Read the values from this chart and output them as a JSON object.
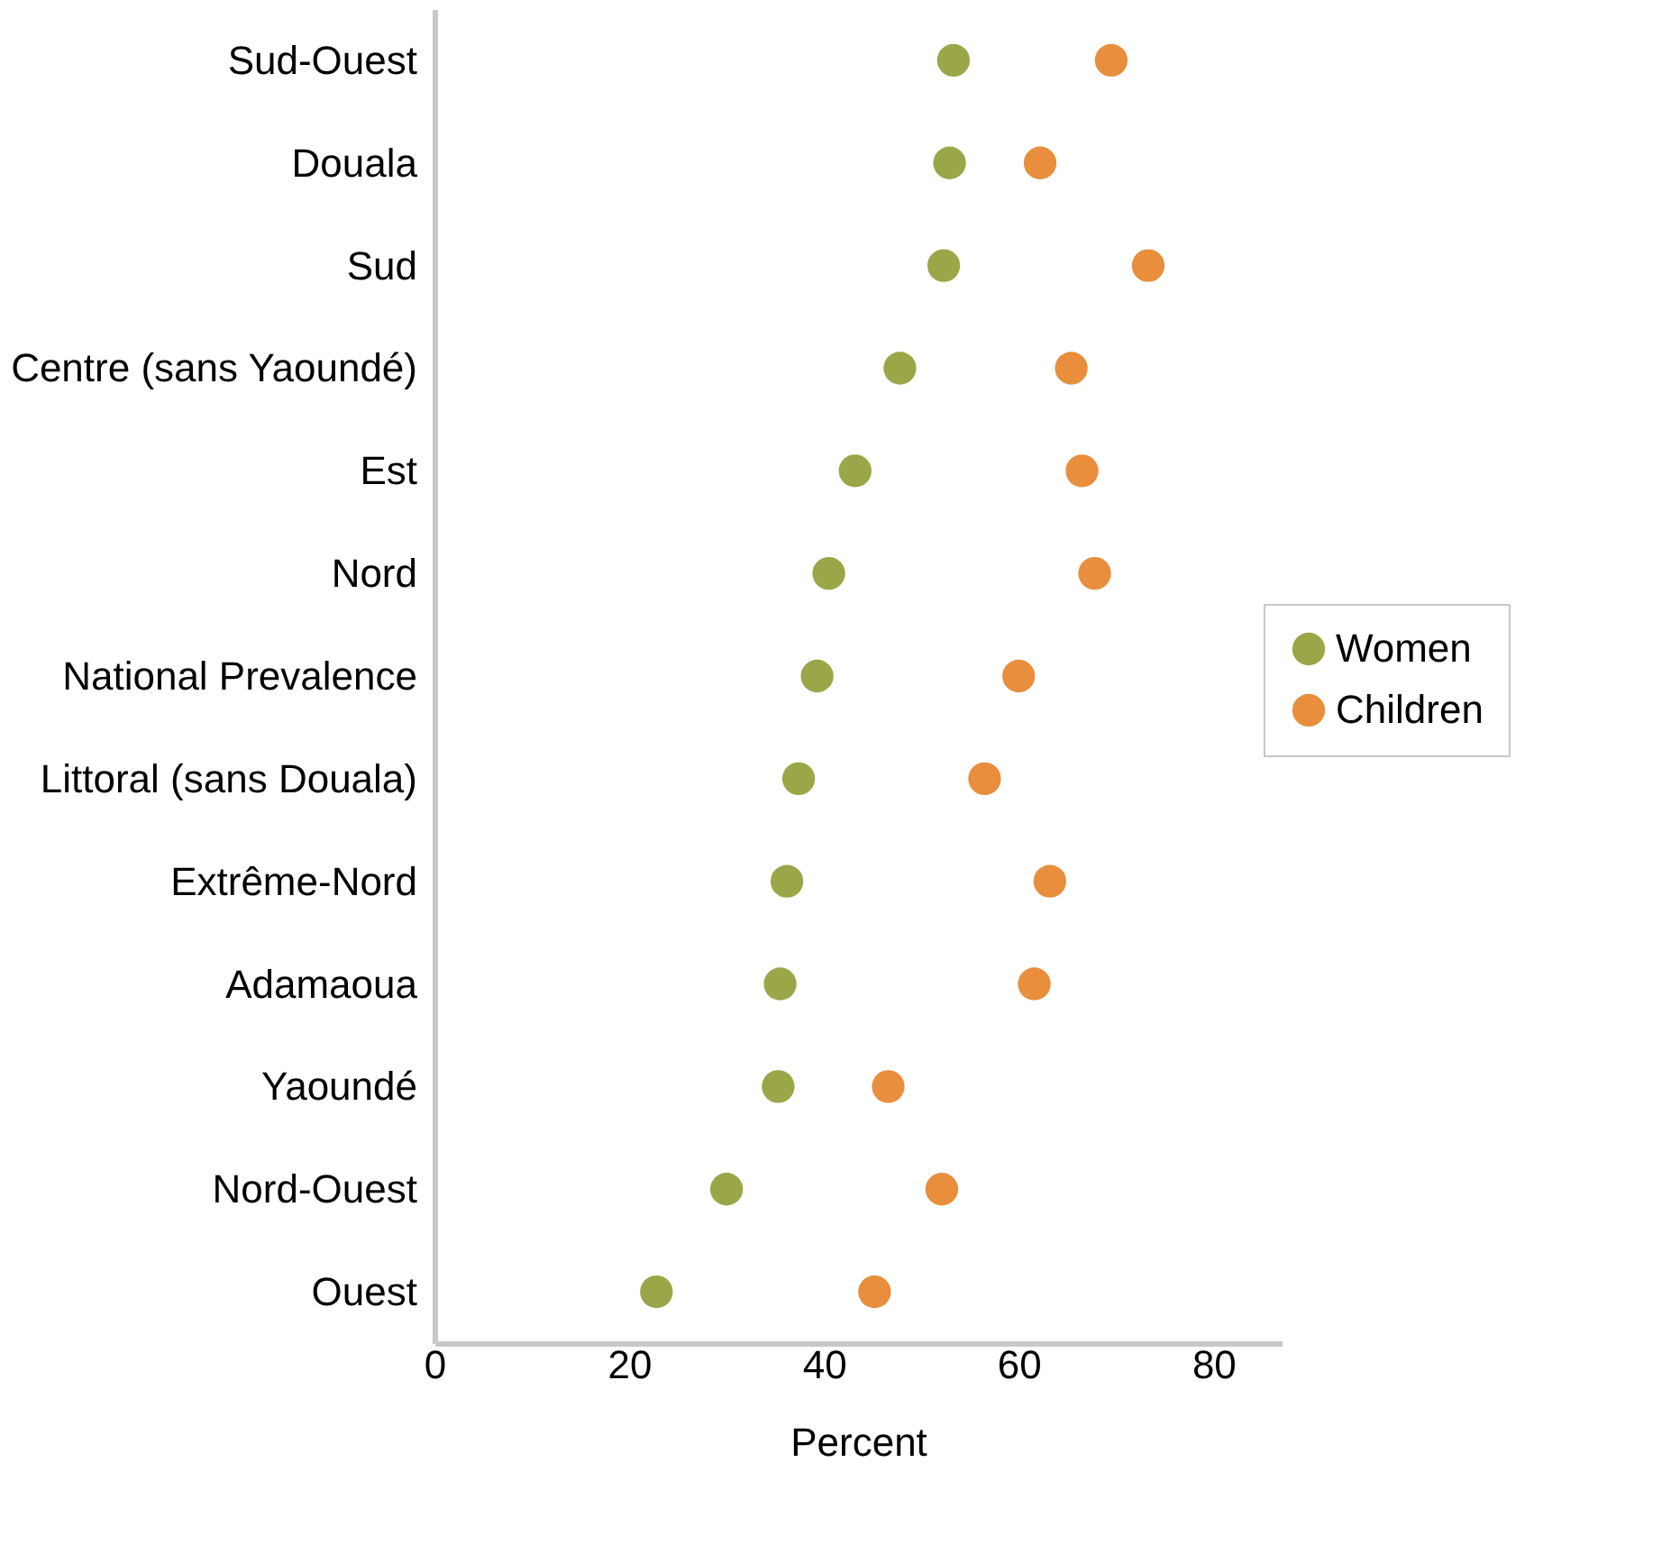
{
  "chart_data": {
    "type": "scatter",
    "xlabel": "Percent",
    "orientation": "horizontal",
    "categories": [
      "Sud-Ouest",
      "Douala",
      "Sud",
      "Centre (sans Yaoundé)",
      "Est",
      "Nord",
      "National Prevalence",
      "Littoral (sans Douala)",
      "Extrême-Nord",
      "Adamaoua",
      "Yaoundé",
      "Nord-Ouest",
      "Ouest"
    ],
    "series": [
      {
        "name": "Women",
        "color": "#9ba648",
        "values": [
          53.3,
          52.9,
          52.3,
          47.8,
          43.2,
          40.5,
          39.3,
          37.4,
          36.2,
          35.5,
          35.3,
          30.0,
          22.8
        ]
      },
      {
        "name": "Children",
        "color": "#e88e3c",
        "values": [
          69.5,
          62.2,
          73.3,
          65.4,
          66.5,
          67.8,
          60.0,
          56.5,
          63.2,
          61.6,
          46.6,
          52.1,
          45.2
        ]
      }
    ],
    "xlim": [
      0,
      87
    ],
    "xticks": [
      0,
      20,
      40,
      60,
      80
    ],
    "grid": false,
    "legend": "right",
    "marker": "circle"
  }
}
